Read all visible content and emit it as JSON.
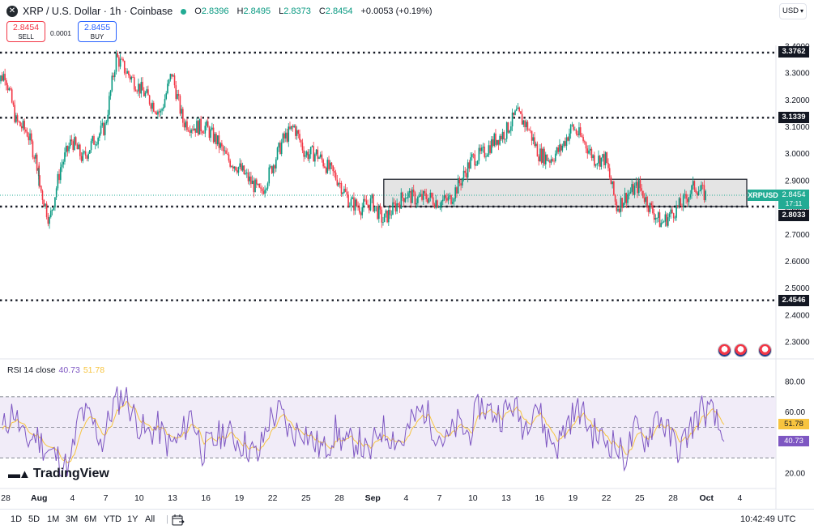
{
  "header": {
    "title": "XRP / U.S. Dollar · 1h · Coinbase",
    "ohlc": {
      "o_label": "O",
      "o": "2.8396",
      "h_label": "H",
      "h": "2.8495",
      "l_label": "L",
      "l": "2.8373",
      "c_label": "C",
      "c": "2.8454",
      "change": "+0.0053 (+0.19%)"
    },
    "sell_price": "2.8454",
    "sell_label": "SELL",
    "buy_price": "2.8455",
    "buy_label": "BUY",
    "spread": "0.0001",
    "currency": "USD"
  },
  "price_axis": {
    "ticks": [
      "3.4000",
      "3.3000",
      "3.2000",
      "3.1000",
      "3.0000",
      "2.9000",
      "2.8000",
      "2.7000",
      "2.6000",
      "2.5000",
      "2.4000",
      "2.3000"
    ],
    "level_labels": [
      "3.3762",
      "3.1339",
      "2.8033",
      "2.4546"
    ],
    "current_symbol": "XRPUSD",
    "current_price": "2.8454",
    "countdown": "17:11"
  },
  "rsi": {
    "legend": "RSI 14 close",
    "rsi_value": "40.73",
    "signal_value": "51.78",
    "ticks": [
      "80.00",
      "60.00",
      "40.00",
      "20.00"
    ],
    "upper_band": 70,
    "lower_band": 30,
    "mid_band": 50
  },
  "time_axis": {
    "labels": [
      "28",
      "Aug",
      "4",
      "7",
      "10",
      "13",
      "16",
      "19",
      "22",
      "25",
      "28",
      "Sep",
      "4",
      "7",
      "10",
      "13",
      "16",
      "19",
      "22",
      "25",
      "28",
      "Oct",
      "4"
    ]
  },
  "logo": "TradingView",
  "timeframes": [
    "1D",
    "5D",
    "1M",
    "3M",
    "6M",
    "YTD",
    "1Y",
    "All"
  ],
  "clock": "10:42:49 UTC",
  "colors": {
    "up": "#089981",
    "down": "#f23645",
    "rsi": "#7e57c2",
    "signal": "#f7c43f",
    "band_fill": "#ede7f6",
    "zone_fill": "#d9d9d9",
    "accent": "#22ab94"
  },
  "chart_data": {
    "type": "candlestick",
    "symbol": "XRPUSD",
    "interval": "1h",
    "ylim": [
      2.2,
      3.42
    ],
    "x_labels": [
      "28",
      "Aug",
      "4",
      "7",
      "10",
      "13",
      "16",
      "19",
      "22",
      "25",
      "28",
      "Sep",
      "4",
      "7",
      "10",
      "13",
      "16",
      "19",
      "22",
      "25",
      "28",
      "Oct",
      "4"
    ],
    "horizontal_levels": [
      3.3762,
      3.1339,
      2.8033,
      2.4546
    ],
    "zone": {
      "low": 2.8033,
      "high": 2.905,
      "from": "Sep 1",
      "to": "Sep 30"
    },
    "last_price": 2.8454,
    "price_path": [
      {
        "t": "Jul 27",
        "p": 3.25
      },
      {
        "t": "Jul 28",
        "p": 3.3
      },
      {
        "t": "Jul 29",
        "p": 3.12
      },
      {
        "t": "Jul 30",
        "p": 3.08
      },
      {
        "t": "Jul 31",
        "p": 2.95
      },
      {
        "t": "Aug 1",
        "p": 2.9
      },
      {
        "t": "Aug 2",
        "p": 2.75
      },
      {
        "t": "Aug 3",
        "p": 2.95
      },
      {
        "t": "Aug 4",
        "p": 3.05
      },
      {
        "t": "Aug 5",
        "p": 2.98
      },
      {
        "t": "Aug 6",
        "p": 3.05
      },
      {
        "t": "Aug 7",
        "p": 3.1
      },
      {
        "t": "Aug 8",
        "p": 3.36
      },
      {
        "t": "Aug 9",
        "p": 3.3
      },
      {
        "t": "Aug 10",
        "p": 3.25
      },
      {
        "t": "Aug 11",
        "p": 3.2
      },
      {
        "t": "Aug 12",
        "p": 3.15
      },
      {
        "t": "Aug 13",
        "p": 3.3
      },
      {
        "t": "Aug 14",
        "p": 3.12
      },
      {
        "t": "Aug 15",
        "p": 3.1
      },
      {
        "t": "Aug 16",
        "p": 3.1
      },
      {
        "t": "Aug 17",
        "p": 3.05
      },
      {
        "t": "Aug 18",
        "p": 2.98
      },
      {
        "t": "Aug 19",
        "p": 2.95
      },
      {
        "t": "Aug 20",
        "p": 2.9
      },
      {
        "t": "Aug 21",
        "p": 2.85
      },
      {
        "t": "Aug 22",
        "p": 2.95
      },
      {
        "t": "Aug 23",
        "p": 3.05
      },
      {
        "t": "Aug 24",
        "p": 3.1
      },
      {
        "t": "Aug 25",
        "p": 3.0
      },
      {
        "t": "Aug 26",
        "p": 3.0
      },
      {
        "t": "Aug 27",
        "p": 2.95
      },
      {
        "t": "Aug 28",
        "p": 2.9
      },
      {
        "t": "Aug 29",
        "p": 2.82
      },
      {
        "t": "Aug 30",
        "p": 2.8
      },
      {
        "t": "Aug 31",
        "p": 2.82
      },
      {
        "t": "Sep 1",
        "p": 2.75
      },
      {
        "t": "Sep 2",
        "p": 2.8
      },
      {
        "t": "Sep 3",
        "p": 2.85
      },
      {
        "t": "Sep 4",
        "p": 2.83
      },
      {
        "t": "Sep 5",
        "p": 2.84
      },
      {
        "t": "Sep 6",
        "p": 2.82
      },
      {
        "t": "Sep 7",
        "p": 2.83
      },
      {
        "t": "Sep 8",
        "p": 2.9
      },
      {
        "t": "Sep 9",
        "p": 2.98
      },
      {
        "t": "Sep 10",
        "p": 3.0
      },
      {
        "t": "Sep 11",
        "p": 3.05
      },
      {
        "t": "Sep 12",
        "p": 3.08
      },
      {
        "t": "Sep 13",
        "p": 3.15
      },
      {
        "t": "Sep 14",
        "p": 3.1
      },
      {
        "t": "Sep 15",
        "p": 3.0
      },
      {
        "t": "Sep 16",
        "p": 2.98
      },
      {
        "t": "Sep 17",
        "p": 3.02
      },
      {
        "t": "Sep 18",
        "p": 3.1
      },
      {
        "t": "Sep 19",
        "p": 3.05
      },
      {
        "t": "Sep 20",
        "p": 2.98
      },
      {
        "t": "Sep 21",
        "p": 2.98
      },
      {
        "t": "Sep 22",
        "p": 2.8
      },
      {
        "t": "Sep 23",
        "p": 2.85
      },
      {
        "t": "Sep 24",
        "p": 2.88
      },
      {
        "t": "Sep 25",
        "p": 2.8
      },
      {
        "t": "Sep 26",
        "p": 2.74
      },
      {
        "t": "Sep 27",
        "p": 2.78
      },
      {
        "t": "Sep 28",
        "p": 2.82
      },
      {
        "t": "Sep 29",
        "p": 2.88
      },
      {
        "t": "Sep 30",
        "p": 2.8454
      }
    ],
    "rsi_path": [
      48,
      62,
      40,
      45,
      35,
      30,
      22,
      60,
      55,
      40,
      65,
      72,
      55,
      45,
      50,
      38,
      42,
      60,
      35,
      40,
      48,
      42,
      38,
      30,
      55,
      60,
      45,
      50,
      40,
      35,
      48,
      38,
      42,
      30,
      50,
      45,
      40,
      55,
      62,
      48,
      40,
      52,
      45,
      65,
      60,
      58,
      65,
      50,
      68,
      45,
      38,
      55,
      62,
      48,
      42,
      40,
      30,
      48,
      42,
      60,
      45,
      35,
      50,
      62,
      58,
      40.73
    ]
  }
}
